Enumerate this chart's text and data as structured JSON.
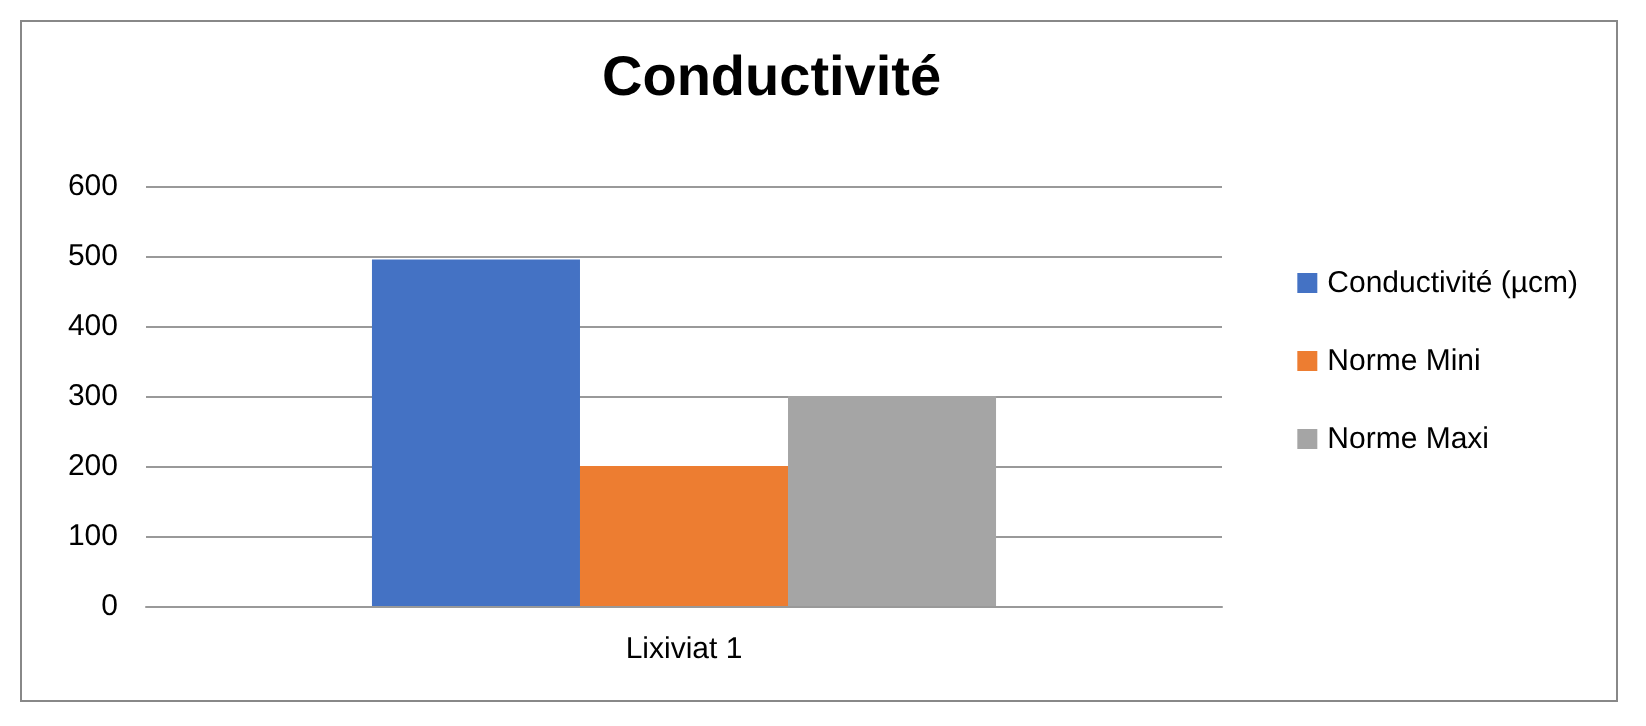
{
  "chart_data": {
    "type": "bar",
    "title": "Conductivité",
    "categories": [
      "Lixiviat 1"
    ],
    "series": [
      {
        "name": "Conductivité (µcm)",
        "color": "#4472c4",
        "values": [
          495
        ]
      },
      {
        "name": "Norme Mini",
        "color": "#ed7d31",
        "values": [
          200
        ]
      },
      {
        "name": "Norme Maxi",
        "color": "#a5a5a5",
        "values": [
          300
        ]
      }
    ],
    "ylim": [
      0,
      600
    ],
    "yticks": [
      0,
      100,
      200,
      300,
      400,
      500,
      600
    ],
    "grid": "y",
    "legend": "right"
  }
}
